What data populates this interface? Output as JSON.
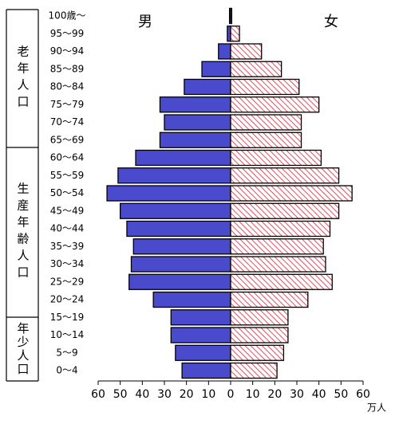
{
  "chart_data": {
    "type": "pyramid",
    "categories": [
      "100歳～",
      "95～99",
      "90～94",
      "85～89",
      "80～84",
      "75～79",
      "70～74",
      "65～69",
      "60～64",
      "55～59",
      "50～54",
      "45～49",
      "40～44",
      "35～39",
      "30～34",
      "25～29",
      "20～24",
      "15～19",
      "10～14",
      "5～9",
      "0～4"
    ],
    "series": [
      {
        "name": "男",
        "color": "#4a4acc",
        "values": [
          0.5,
          1.5,
          5.5,
          13,
          21,
          32,
          30,
          32,
          43,
          51,
          56,
          50,
          47,
          44,
          45,
          46,
          35,
          27,
          27,
          25,
          22
        ]
      },
      {
        "name": "女",
        "color": "#f2b8c0",
        "values": [
          0.5,
          4,
          14,
          23,
          31,
          40,
          32,
          32,
          41,
          49,
          55,
          49,
          45,
          42,
          43,
          46,
          35,
          26,
          26,
          24,
          21
        ]
      }
    ],
    "groups": [
      "老年人口",
      "生産年齢人口",
      "年少人口"
    ],
    "xlabel": "万人",
    "xlim": [
      0,
      60
    ],
    "xticks": [
      0,
      10,
      20,
      30,
      40,
      50,
      60
    ]
  }
}
